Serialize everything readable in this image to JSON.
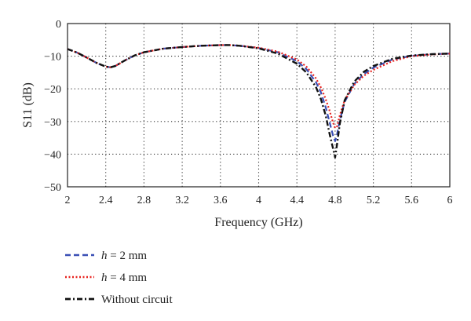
{
  "chart_data": {
    "type": "line",
    "xlabel": "Frequency (GHz)",
    "ylabel": "S11 (dB)",
    "xlim": [
      2,
      6
    ],
    "ylim": [
      -50,
      0
    ],
    "xticks": [
      2,
      2.4,
      2.8,
      3.2,
      3.6,
      4,
      4.4,
      4.8,
      5.2,
      5.6,
      6
    ],
    "xtick_labels": [
      "2",
      "2.4",
      "2.8",
      "3.2",
      "3.6",
      "4",
      "4.4",
      "4.8",
      "5.2",
      "5.6",
      "6"
    ],
    "yticks": [
      0,
      -10,
      -20,
      -30,
      -40,
      -50
    ],
    "ytick_labels": [
      "0",
      "−10",
      "−20",
      "−30",
      "−40",
      "−50"
    ],
    "grid": true,
    "grid_style": "dotted",
    "legend_position": "bottom-left, below plot",
    "series": [
      {
        "name": "h = 2 mm",
        "name_italic_part": "h",
        "name_rest": " = 2 mm",
        "color": "#3a4fb5",
        "dash": "dashed",
        "x": [
          2.0,
          2.1,
          2.2,
          2.3,
          2.4,
          2.45,
          2.5,
          2.6,
          2.7,
          2.8,
          3.0,
          3.2,
          3.4,
          3.6,
          3.7,
          3.8,
          4.0,
          4.2,
          4.4,
          4.5,
          4.6,
          4.65,
          4.7,
          4.74,
          4.78,
          4.8,
          4.82,
          4.85,
          4.9,
          5.0,
          5.1,
          5.2,
          5.4,
          5.6,
          5.8,
          6.0
        ],
        "y": [
          -7.8,
          -8.9,
          -10.4,
          -12.0,
          -13.2,
          -13.4,
          -13.0,
          -11.3,
          -9.8,
          -8.8,
          -7.7,
          -7.2,
          -6.8,
          -6.6,
          -6.6,
          -6.8,
          -7.5,
          -8.8,
          -11.5,
          -14.0,
          -18.0,
          -21.0,
          -25.5,
          -30.0,
          -34.5,
          -36.0,
          -34.0,
          -29.5,
          -24.0,
          -18.5,
          -15.5,
          -13.5,
          -11.0,
          -9.9,
          -9.4,
          -9.2
        ]
      },
      {
        "name": "h = 4 mm",
        "name_italic_part": "h",
        "name_rest": " = 4 mm",
        "color": "#e8231f",
        "dash": "dotted",
        "x": [
          2.0,
          2.1,
          2.2,
          2.3,
          2.4,
          2.45,
          2.5,
          2.6,
          2.7,
          2.8,
          3.0,
          3.2,
          3.4,
          3.6,
          3.7,
          3.8,
          4.0,
          4.2,
          4.4,
          4.5,
          4.6,
          4.65,
          4.7,
          4.74,
          4.78,
          4.8,
          4.82,
          4.85,
          4.9,
          5.0,
          5.1,
          5.2,
          5.4,
          5.6,
          5.8,
          6.0
        ],
        "y": [
          -7.8,
          -8.9,
          -10.4,
          -12.0,
          -13.2,
          -13.4,
          -13.0,
          -11.3,
          -9.8,
          -8.8,
          -7.7,
          -7.2,
          -6.8,
          -6.6,
          -6.6,
          -6.8,
          -7.4,
          -8.6,
          -11.0,
          -13.2,
          -16.8,
          -19.5,
          -23.0,
          -26.5,
          -30.5,
          -32.0,
          -31.5,
          -28.0,
          -23.5,
          -18.8,
          -16.0,
          -14.2,
          -11.5,
          -10.0,
          -9.5,
          -9.2
        ]
      },
      {
        "name": "Without circuit",
        "color": "#111111",
        "dash": "dashdot",
        "x": [
          2.0,
          2.1,
          2.2,
          2.3,
          2.4,
          2.45,
          2.5,
          2.6,
          2.7,
          2.8,
          3.0,
          3.2,
          3.4,
          3.6,
          3.7,
          3.8,
          4.0,
          4.2,
          4.4,
          4.5,
          4.6,
          4.65,
          4.7,
          4.74,
          4.78,
          4.8,
          4.82,
          4.85,
          4.9,
          5.0,
          5.1,
          5.2,
          5.4,
          5.6,
          5.8,
          6.0
        ],
        "y": [
          -7.8,
          -8.9,
          -10.4,
          -12.0,
          -13.2,
          -13.4,
          -13.0,
          -11.3,
          -9.8,
          -8.8,
          -7.7,
          -7.2,
          -6.8,
          -6.6,
          -6.6,
          -6.8,
          -7.6,
          -9.2,
          -12.3,
          -15.0,
          -19.5,
          -23.0,
          -28.0,
          -33.5,
          -38.5,
          -41.0,
          -37.0,
          -30.5,
          -23.5,
          -17.8,
          -14.8,
          -13.0,
          -10.8,
          -9.8,
          -9.4,
          -9.2
        ]
      }
    ]
  }
}
